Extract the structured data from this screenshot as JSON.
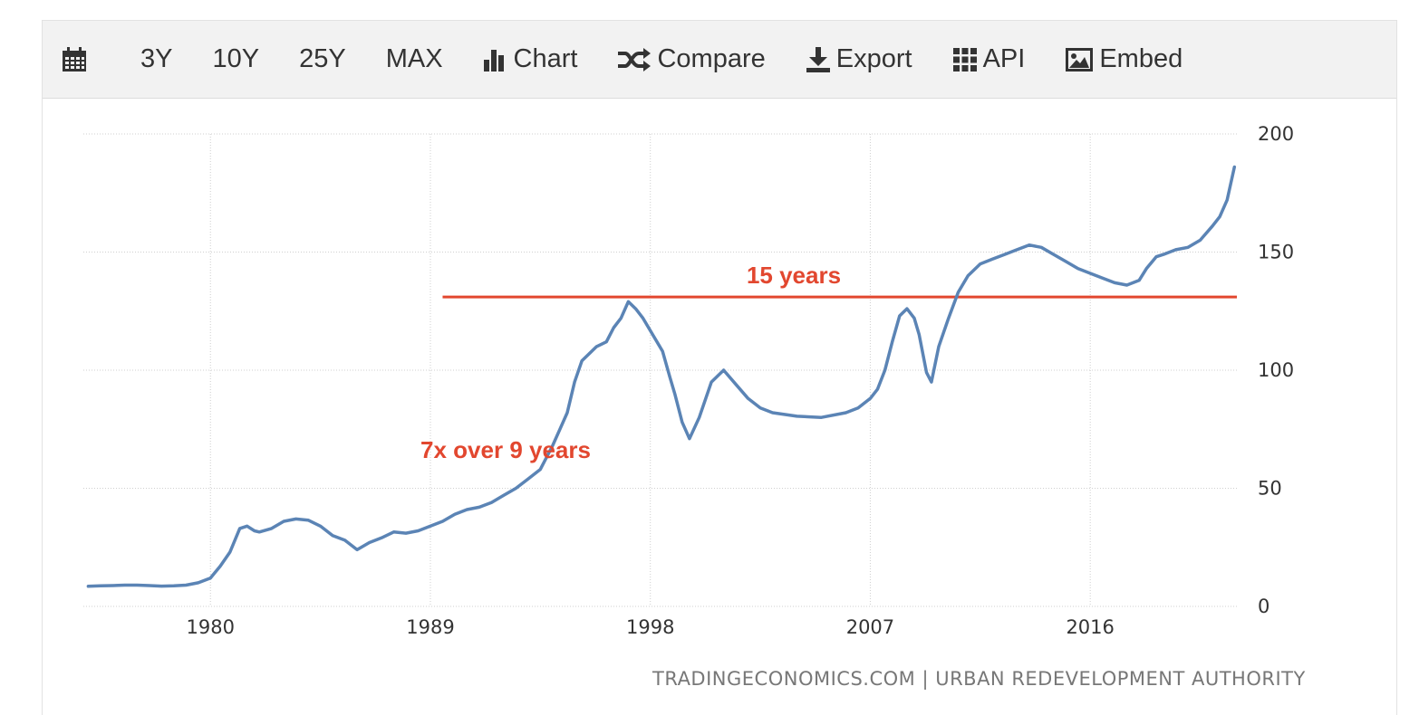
{
  "toolbar": {
    "items": [
      {
        "icon": "calendar-icon"
      },
      {
        "label": "3Y"
      },
      {
        "label": "10Y"
      },
      {
        "label": "25Y"
      },
      {
        "label": "MAX"
      },
      {
        "label": "Chart",
        "icon": "bar-chart-icon"
      },
      {
        "label": "Compare",
        "icon": "shuffle-icon"
      },
      {
        "label": "Export",
        "icon": "download-icon"
      },
      {
        "label": "API",
        "icon": "grid-icon"
      },
      {
        "label": "Embed",
        "icon": "image-icon"
      }
    ]
  },
  "source_text": "TRADINGECONOMICS.COM | URBAN REDEVELOPMENT AUTHORITY",
  "colors": {
    "line": "#5b84b5",
    "annotation": "#e2472f",
    "grid": "#cfcfcf",
    "toolbar_bg": "#f2f2f2"
  },
  "chart_data": {
    "type": "line",
    "title": "",
    "xlabel": "",
    "ylabel": "",
    "xlim": [
      1974.8,
      2022.0
    ],
    "ylim": [
      0,
      200
    ],
    "x_ticks": [
      1980,
      1989,
      1998,
      2007,
      2016
    ],
    "y_ticks": [
      0,
      50,
      100,
      150,
      200
    ],
    "y_axis_side": "right",
    "grid": true,
    "series": [
      {
        "x": [
          1975.0,
          1975.5,
          1976.0,
          1976.5,
          1977.0,
          1977.5,
          1978.0,
          1978.5,
          1979.0,
          1979.5,
          1980.0,
          1980.4,
          1980.8,
          1981.2,
          1981.5,
          1981.8,
          1982.0,
          1982.5,
          1983.0,
          1983.5,
          1984.0,
          1984.5,
          1985.0,
          1985.5,
          1986.0,
          1986.5,
          1987.0,
          1987.5,
          1988.0,
          1988.5,
          1989.0,
          1989.5,
          1990.0,
          1990.5,
          1991.0,
          1991.5,
          1992.0,
          1992.5,
          1993.0,
          1993.5,
          1994.0,
          1994.3,
          1994.6,
          1994.9,
          1995.2,
          1995.5,
          1995.8,
          1996.2,
          1996.5,
          1996.8,
          1997.1,
          1997.4,
          1997.7,
          1998.1,
          1998.5,
          1998.8,
          1999.0,
          1999.3,
          1999.6,
          2000.0,
          2000.5,
          2001.0,
          2001.5,
          2002.0,
          2002.5,
          2003.0,
          2004.0,
          2005.0,
          2006.0,
          2006.5,
          2007.0,
          2007.3,
          2007.6,
          2007.9,
          2008.2,
          2008.5,
          2008.8,
          2009.0,
          2009.3,
          2009.5,
          2009.8,
          2010.2,
          2010.6,
          2011.0,
          2011.5,
          2012.0,
          2012.5,
          2013.0,
          2013.5,
          2014.0,
          2014.5,
          2015.0,
          2015.5,
          2016.0,
          2016.5,
          2017.0,
          2017.5,
          2018.0,
          2018.3,
          2018.7,
          2019.0,
          2019.5,
          2020.0,
          2020.5,
          2021.0,
          2021.3,
          2021.6,
          2021.9
        ],
        "values": [
          8.5,
          8.7,
          8.8,
          9.0,
          9.0,
          8.8,
          8.6,
          8.7,
          9.0,
          10.0,
          12.0,
          17.0,
          23.0,
          33.0,
          34.0,
          32.0,
          31.5,
          33.0,
          36.0,
          37.0,
          36.5,
          34.0,
          30.0,
          28.0,
          24.0,
          27.0,
          29.0,
          31.5,
          31.0,
          32.0,
          34.0,
          36.0,
          39.0,
          41.0,
          42.0,
          44.0,
          47.0,
          50.0,
          54.0,
          58.0,
          68.0,
          75.0,
          82.0,
          95.0,
          104.0,
          107.0,
          110.0,
          112.0,
          118.0,
          122.0,
          129.0,
          126.0,
          122.0,
          115.0,
          108.0,
          97.0,
          90.0,
          78.0,
          71.0,
          80.0,
          95.0,
          100.0,
          94.0,
          88.0,
          84.0,
          82.0,
          80.5,
          80.0,
          82.0,
          84.0,
          88.0,
          92.0,
          100.0,
          112.0,
          123.0,
          126.0,
          122.0,
          115.0,
          99.0,
          95.0,
          110.0,
          122.0,
          133.0,
          140.0,
          145.0,
          147.0,
          149.0,
          151.0,
          153.0,
          152.0,
          149.0,
          146.0,
          143.0,
          141.0,
          139.0,
          137.0,
          136.0,
          138.0,
          143.0,
          148.0,
          149.0,
          151.0,
          152.0,
          155.0,
          161.0,
          165.0,
          172.0,
          186.0
        ]
      }
    ],
    "annotations": [
      {
        "text": "15 years",
        "type": "horizontal-line",
        "y": 131,
        "x_start": 1989.5,
        "x_end": 2022.0
      },
      {
        "text": "7x over 9 years",
        "type": "label",
        "x": 1993.3,
        "y": 64
      }
    ]
  }
}
